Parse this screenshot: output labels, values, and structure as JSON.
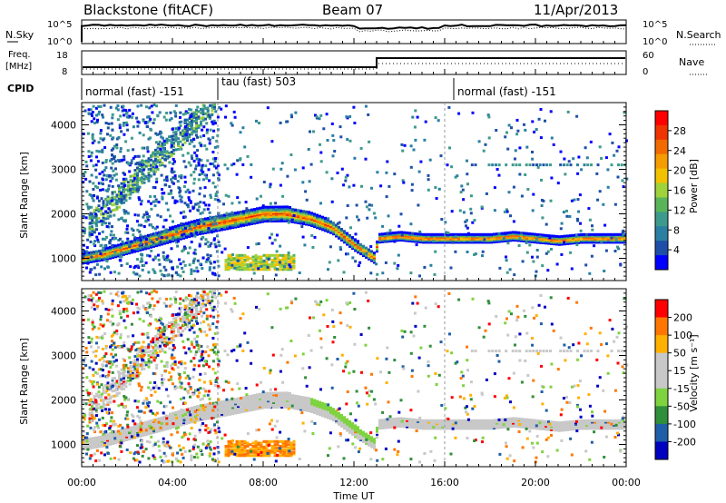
{
  "header": {
    "title_left": "Blackstone (fitACF)",
    "title_center": "Beam 07",
    "title_right": "11/Apr/2013"
  },
  "panels": {
    "nsky_label": "N.Sky",
    "nsky_ticks": [
      "10^5",
      "10^0"
    ],
    "nsearch_label": "N.Search",
    "nsearch_ticks": [
      "10^5",
      "10^0"
    ],
    "freq_label_1": "Freq.",
    "freq_label_2": "[MHz]",
    "freq_ticks": [
      "18",
      "8"
    ],
    "nave_label": "Nave",
    "nave_ticks": [
      "60",
      "0"
    ],
    "cpid_label": "CPID",
    "cpid_segments": [
      {
        "label": "normal (fast) -151",
        "start_hour": 0
      },
      {
        "label": "tau (fast) 503",
        "start_hour": 6
      },
      {
        "label": "normal (fast) -151",
        "start_hour": 16
      }
    ]
  },
  "colors": {
    "power_scale": [
      "#0000ff",
      "#1d4fa8",
      "#2a7fa3",
      "#3e9a8c",
      "#5ab55a",
      "#9fd23b",
      "#f2c200",
      "#f59c00",
      "#f26a00",
      "#ee3400",
      "#ff0000"
    ],
    "velocity_scale": [
      "#ff0000",
      "#ff7700",
      "#ffb000",
      "#c8c8c8",
      "#c8c8c8",
      "#7ed33f",
      "#2f8f3a",
      "#1e5fa8",
      "#0000c0"
    ]
  },
  "chart_data": [
    {
      "type": "heatmap",
      "name": "power",
      "ylabel": "Slant Range [km]",
      "yticks": [
        "1000",
        "2000",
        "3000",
        "4000"
      ],
      "ylim": [
        500,
        4500
      ],
      "xlim": [
        0,
        24
      ],
      "colorbar_label": "Power [dB]",
      "colorbar_ticks": [
        "4",
        "8",
        "12",
        "16",
        "20",
        "24",
        "28"
      ],
      "main_band": {
        "hours": [
          0,
          1,
          2,
          3,
          4,
          5,
          6,
          7,
          8,
          9,
          10,
          11,
          12,
          12.9,
          13,
          14,
          15,
          16,
          17,
          18,
          19,
          20,
          21,
          22,
          23,
          24
        ],
        "range_km": [
          1000,
          1100,
          1250,
          1400,
          1550,
          1700,
          1800,
          1900,
          2000,
          2000,
          1900,
          1700,
          1300,
          1000,
          1450,
          1500,
          1450,
          1450,
          1450,
          1450,
          1500,
          1450,
          1400,
          1450,
          1450,
          1450
        ]
      }
    },
    {
      "type": "heatmap",
      "name": "velocity",
      "ylabel": "Slant Range [km]",
      "yticks": [
        "1000",
        "2000",
        "3000",
        "4000"
      ],
      "ylim": [
        500,
        4500
      ],
      "xlim": [
        0,
        24
      ],
      "xlabel": "Time UT",
      "xticks": [
        "00:00",
        "04:00",
        "08:00",
        "12:00",
        "16:00",
        "20:00",
        "00:00"
      ],
      "colorbar_label": "Velocity [m s⁻¹]",
      "colorbar_ticks": [
        "200",
        "100",
        "50",
        "15",
        "-15",
        "-50",
        "-100",
        "-200"
      ]
    }
  ]
}
